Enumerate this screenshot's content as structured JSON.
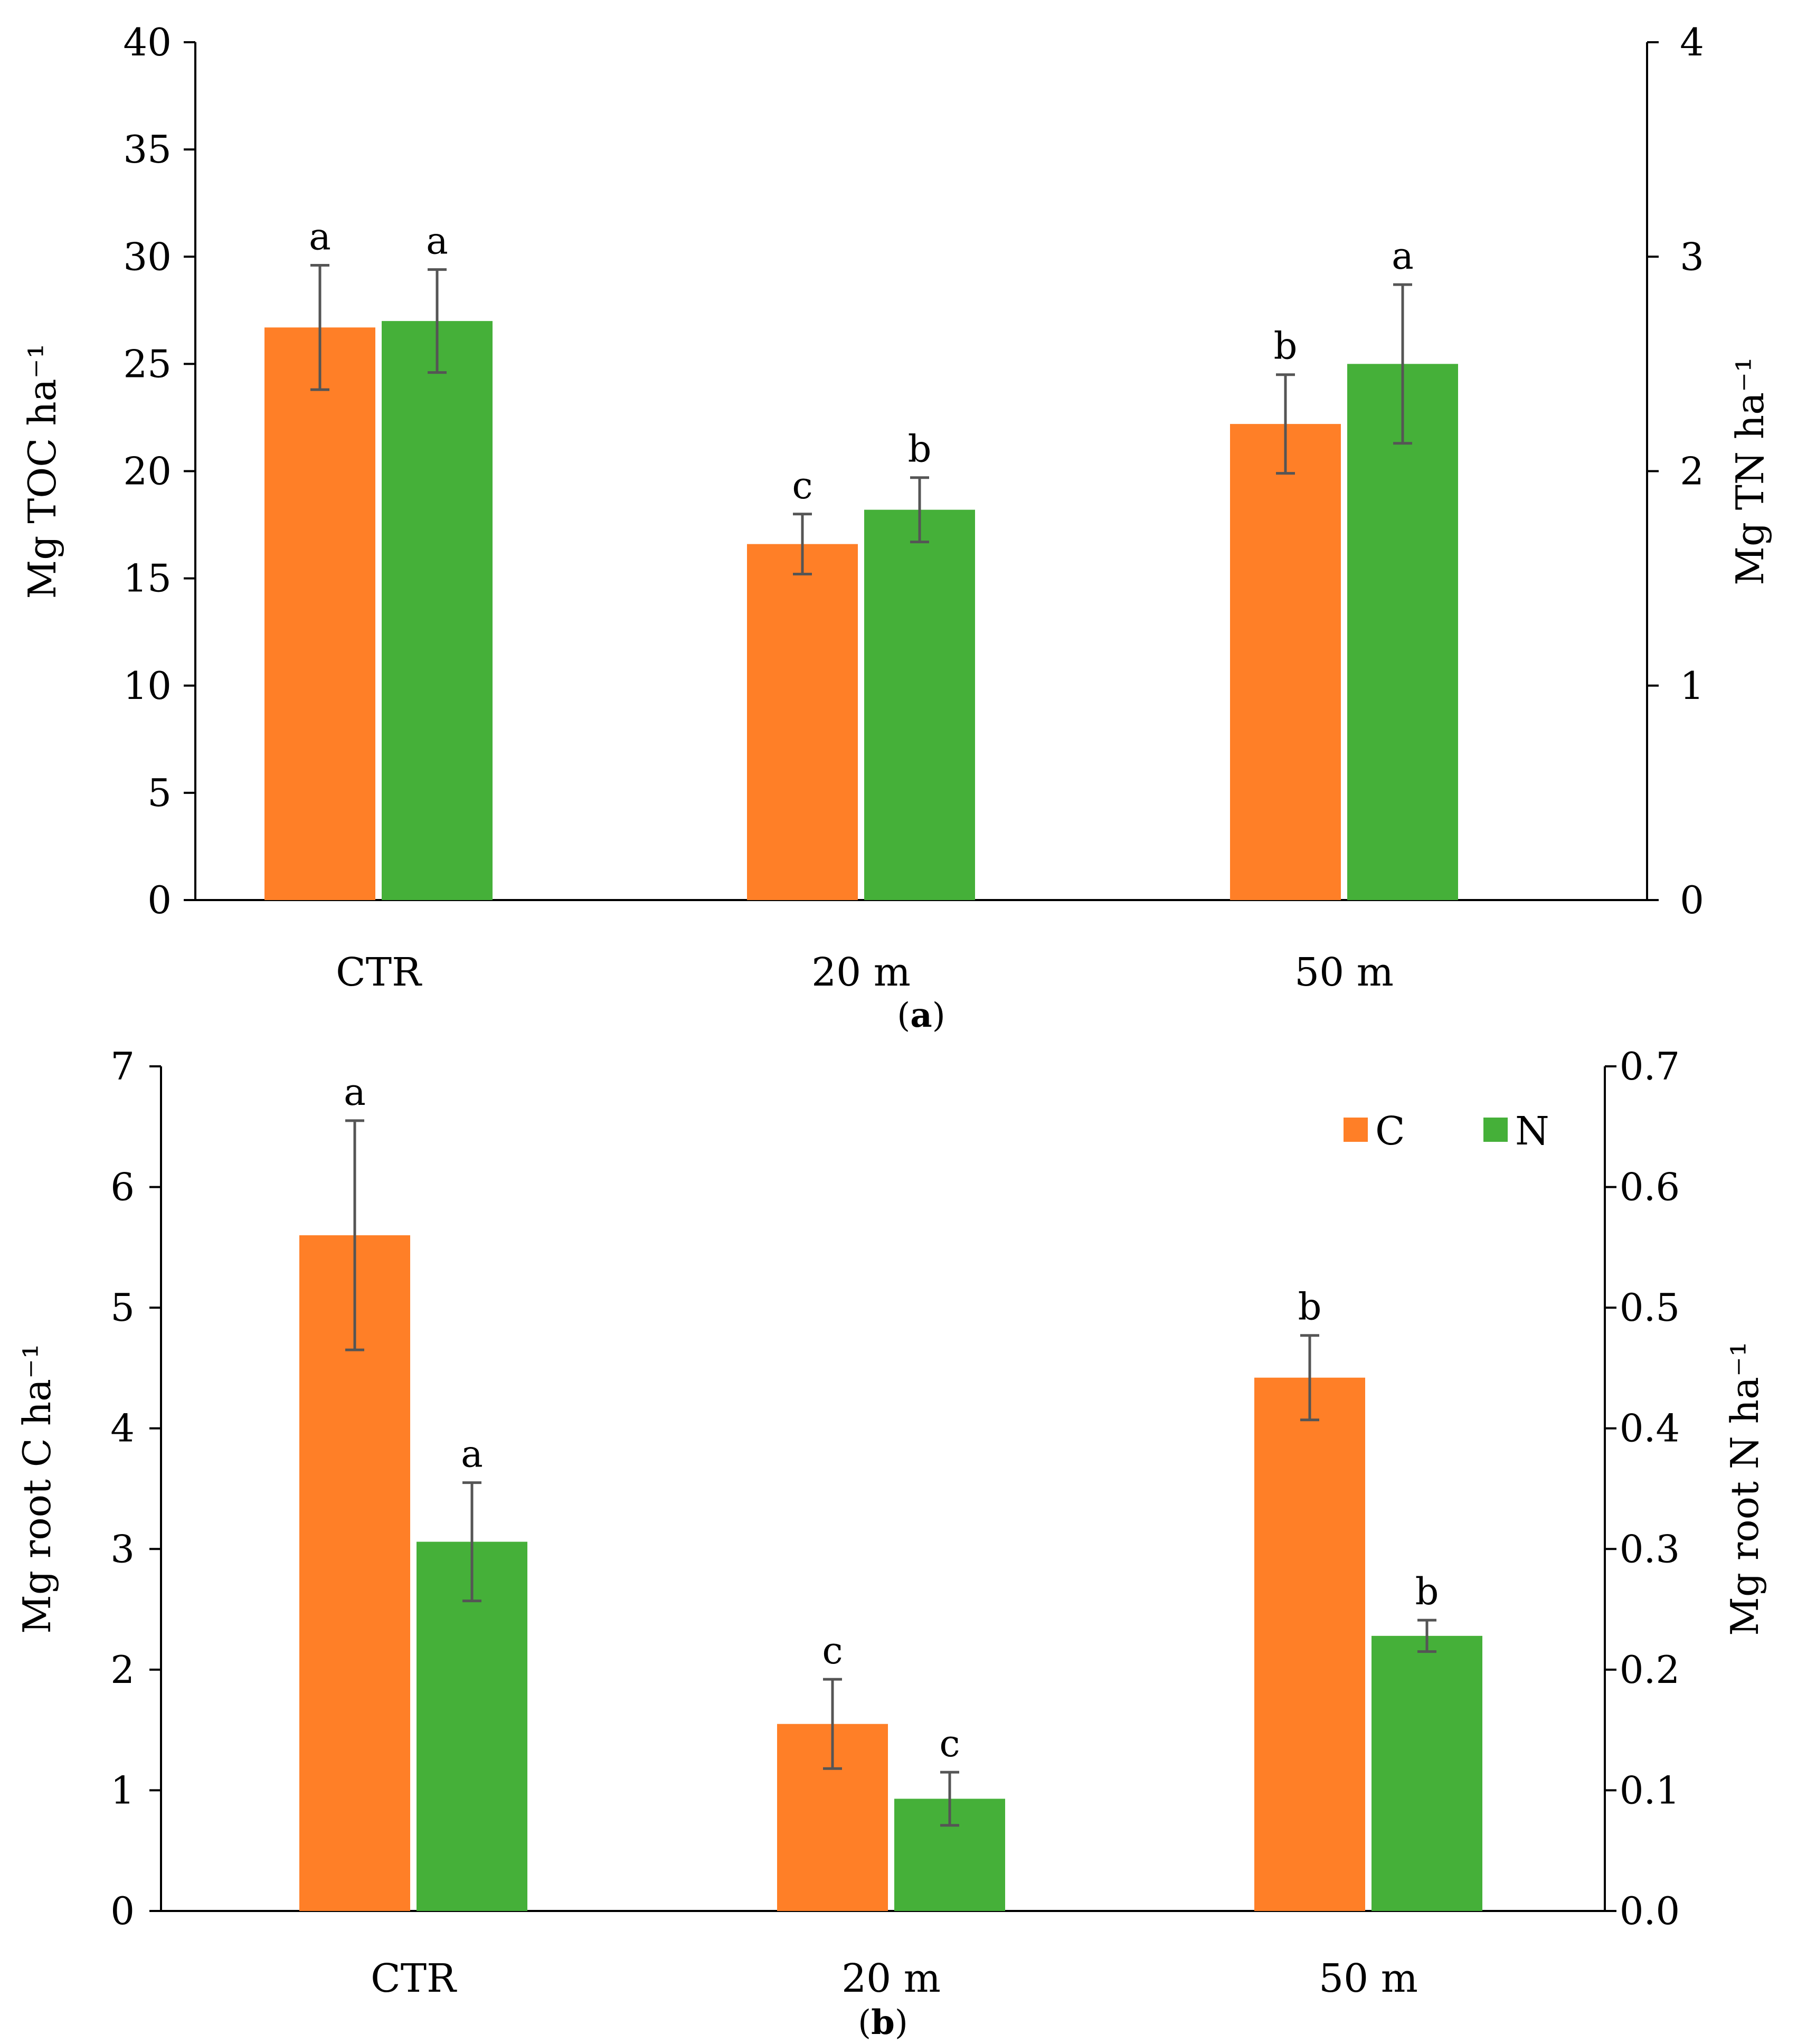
{
  "colors": {
    "C": "#FF7F27",
    "N": "#45B039",
    "axis": "#000000",
    "error": "#555555"
  },
  "chart_data": [
    {
      "type": "bar",
      "panel_label": "a",
      "categories": [
        "CTR",
        "20 m",
        "50 m"
      ],
      "ylabel": "Mg TOC ha⁻¹",
      "ylabel_right": "Mg TN ha⁻¹",
      "ylim": [
        0,
        40
      ],
      "yticks": [
        "0",
        "5",
        "10",
        "15",
        "20",
        "25",
        "30",
        "35",
        "40"
      ],
      "ylim_right": [
        0,
        4
      ],
      "yticks_right": [
        "0",
        "1",
        "2",
        "3",
        "4"
      ],
      "legend": "none",
      "grid": false,
      "series": [
        {
          "key": "C",
          "axis": "left",
          "values": [
            26.7,
            16.6,
            22.2
          ],
          "errors": [
            2.9,
            1.4,
            2.3
          ],
          "labels": [
            "a",
            "c",
            "b"
          ]
        },
        {
          "key": "N",
          "axis": "right",
          "values": [
            2.7,
            1.82,
            2.5
          ],
          "errors": [
            0.24,
            0.15,
            0.37
          ],
          "labels": [
            "a",
            "b",
            "a"
          ]
        }
      ]
    },
    {
      "type": "bar",
      "panel_label": "b",
      "categories": [
        "CTR",
        "20 m",
        "50 m"
      ],
      "ylabel": "Mg root C ha⁻¹",
      "ylabel_right": "Mg root N ha⁻¹",
      "ylim": [
        0,
        7
      ],
      "yticks": [
        "0",
        "1",
        "2",
        "3",
        "4",
        "5",
        "6",
        "7"
      ],
      "ylim_right": [
        0,
        0.7
      ],
      "yticks_right": [
        "0.0",
        "0.1",
        "0.2",
        "0.3",
        "0.4",
        "0.5",
        "0.6",
        "0.7"
      ],
      "legend": "top-right",
      "legend_entries": [
        "C",
        "N"
      ],
      "grid": false,
      "series": [
        {
          "key": "C",
          "name": "C",
          "axis": "left",
          "values": [
            5.6,
            1.55,
            4.42
          ],
          "errors": [
            0.95,
            0.37,
            0.35
          ],
          "labels": [
            "a",
            "c",
            "b"
          ]
        },
        {
          "key": "N",
          "name": "N",
          "axis": "right",
          "values": [
            0.306,
            0.093,
            0.228
          ],
          "errors": [
            0.049,
            0.022,
            0.013
          ],
          "labels": [
            "a",
            "c",
            "b"
          ]
        }
      ]
    }
  ]
}
